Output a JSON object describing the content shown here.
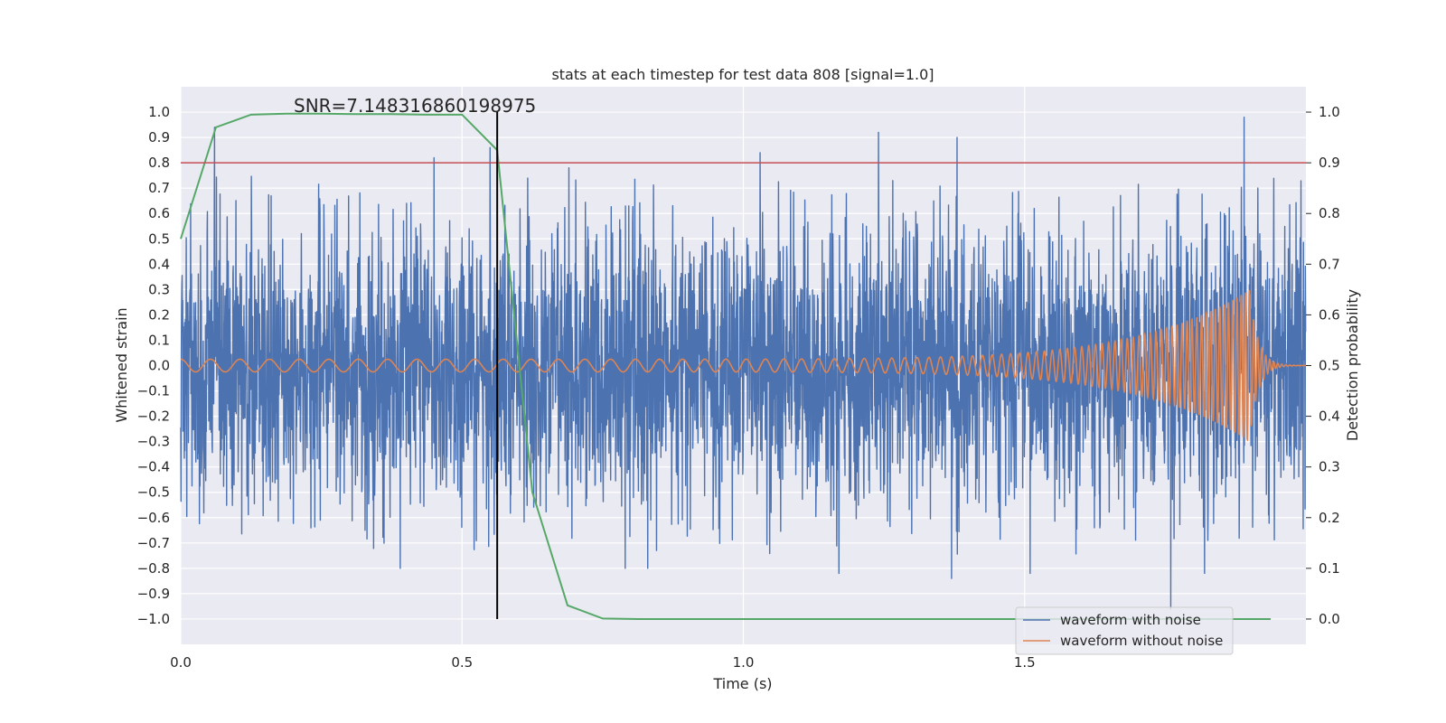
{
  "chart_data": {
    "type": "line",
    "title": "stats at each timestep for test data 808 [signal=1.0]",
    "xlabel": "Time (s)",
    "ylabel_left": "Whitened strain",
    "ylabel_right": "Detection probability",
    "xlim": [
      0.0,
      2.0
    ],
    "ylim_left": [
      -1.1,
      1.1
    ],
    "ylim_right": [
      -0.05,
      1.05
    ],
    "x_ticks": [
      0.0,
      0.5,
      1.0,
      1.5
    ],
    "x_tick_labels": [
      "0.0",
      "0.5",
      "1.0",
      "1.5"
    ],
    "y_left_ticks": [
      1.0,
      0.9,
      0.8,
      0.7,
      0.6,
      0.5,
      0.4,
      0.3,
      0.2,
      0.1,
      0.0,
      -0.1,
      -0.2,
      -0.3,
      -0.4,
      -0.5,
      -0.6,
      -0.7,
      -0.8,
      -0.9,
      -1.0
    ],
    "y_left_tick_labels": [
      "1.0",
      "0.9",
      "0.8",
      "0.7",
      "0.6",
      "0.5",
      "0.4",
      "0.3",
      "0.2",
      "0.1",
      "0.0",
      "−0.1",
      "−0.2",
      "−0.3",
      "−0.4",
      "−0.5",
      "−0.6",
      "−0.7",
      "−0.8",
      "−0.9",
      "−1.0"
    ],
    "y_right_ticks": [
      1.0,
      0.9,
      0.8,
      0.7,
      0.6,
      0.5,
      0.4,
      0.3,
      0.2,
      0.1,
      0.0
    ],
    "y_right_tick_labels": [
      "1.0",
      "0.9",
      "0.8",
      "0.7",
      "0.6",
      "0.5",
      "0.4",
      "0.3",
      "0.2",
      "0.1",
      "0.0"
    ],
    "annotation": "SNR=7.148316860198975",
    "annotation_x": 0.2,
    "annotation_y": 1.0,
    "threshold": {
      "axis": "right",
      "value": 0.9,
      "color": "#c44e52"
    },
    "vline": {
      "x": 0.5625,
      "color": "#000000"
    },
    "detection_probability": {
      "x": [
        0.0,
        0.0625,
        0.125,
        0.1875,
        0.25,
        0.3125,
        0.375,
        0.4375,
        0.5,
        0.5625,
        0.625,
        0.6875,
        0.75,
        0.8125,
        0.875,
        0.9375,
        1.0,
        1.0625,
        1.125,
        1.1875,
        1.25,
        1.3125,
        1.375,
        1.4375,
        1.5,
        1.5625,
        1.625,
        1.6875,
        1.75,
        1.8125,
        1.875,
        1.9375
      ],
      "y": [
        0.75,
        0.97,
        0.995,
        0.997,
        0.997,
        0.996,
        0.996,
        0.995,
        0.995,
        0.925,
        0.25,
        0.027,
        0.001,
        0.0,
        0.0,
        0.0,
        0.0,
        0.0,
        0.0,
        0.0,
        0.0,
        0.0,
        0.0,
        0.0,
        0.0,
        0.0,
        0.0,
        0.0,
        0.0,
        0.0,
        0.0,
        0.0
      ],
      "color": "#55a868"
    },
    "series": [
      {
        "name": "waveform with noise",
        "color": "#4c72b0",
        "generator": "noise",
        "seed": 808,
        "samples": 4096,
        "std": 0.27,
        "peaks": [
          {
            "t": 0.06,
            "v": 0.94
          },
          {
            "t": 0.39,
            "v": -0.8
          },
          {
            "t": 0.45,
            "v": 0.82
          },
          {
            "t": 0.55,
            "v": 0.86
          },
          {
            "t": 0.69,
            "v": 0.78
          },
          {
            "t": 0.79,
            "v": -0.8
          },
          {
            "t": 0.83,
            "v": -0.8
          },
          {
            "t": 1.03,
            "v": 0.84
          },
          {
            "t": 1.17,
            "v": -0.82
          },
          {
            "t": 1.24,
            "v": 0.92
          },
          {
            "t": 1.37,
            "v": -0.84
          },
          {
            "t": 1.38,
            "v": 0.9
          },
          {
            "t": 1.51,
            "v": -0.82
          },
          {
            "t": 1.76,
            "v": -0.96
          },
          {
            "t": 1.82,
            "v": -0.82
          },
          {
            "t": 1.89,
            "v": 0.98
          }
        ]
      },
      {
        "name": "waveform without noise",
        "color": "#dd8452",
        "generator": "chirp",
        "t_merge": 1.9,
        "f_start": 19,
        "f_end": 140,
        "amp_start": 0.025,
        "amp_end": 0.3
      }
    ],
    "legend_position": "lower-right"
  },
  "colors": {
    "plot_background": "#eaeaf2",
    "grid": "#ffffff",
    "text": "#262626"
  }
}
